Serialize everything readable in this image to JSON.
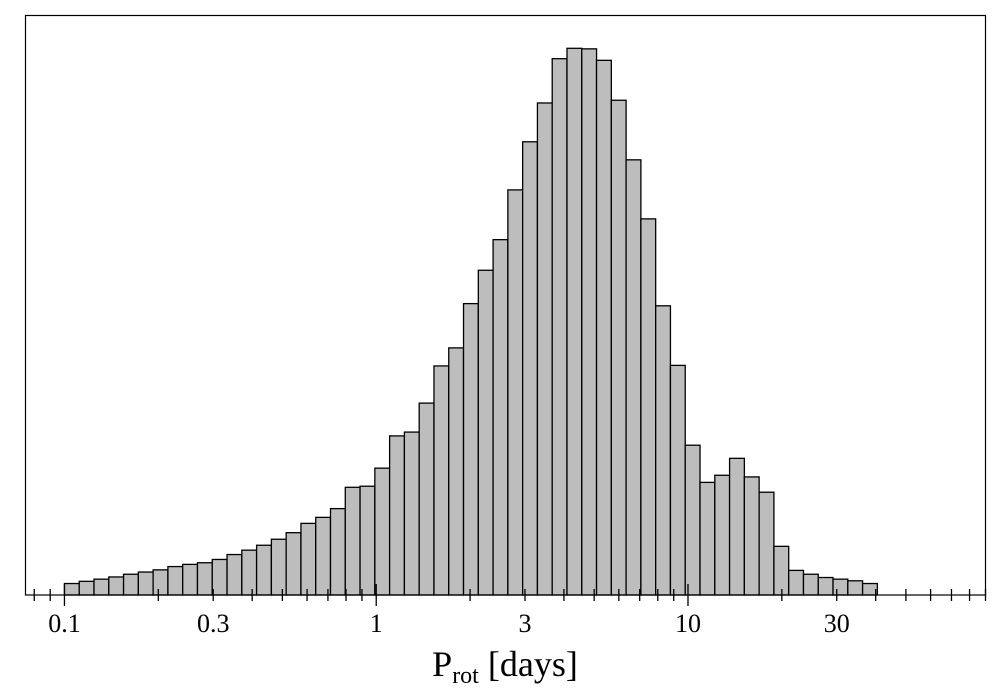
{
  "chart_data": {
    "type": "bar",
    "xscale": "log",
    "xlim": [
      0.075,
      90
    ],
    "ylim": [
      0,
      1.06
    ],
    "xlabel": {
      "main": "P",
      "sub": "rot",
      "suffix": " [days]"
    },
    "ylabel": "",
    "yticks": "none",
    "bar_color": "#bdbdbd",
    "edge_color": "#000000",
    "bins": {
      "x_start": 0.1,
      "x_end": 40.5,
      "relative_heights": [
        0.021,
        0.025,
        0.029,
        0.033,
        0.038,
        0.042,
        0.046,
        0.052,
        0.056,
        0.059,
        0.065,
        0.074,
        0.082,
        0.091,
        0.102,
        0.114,
        0.131,
        0.142,
        0.158,
        0.197,
        0.199,
        0.232,
        0.291,
        0.298,
        0.351,
        0.419,
        0.452,
        0.533,
        0.594,
        0.65,
        0.741,
        0.829,
        0.9,
        0.981,
        1.0,
        0.999,
        0.978,
        0.905,
        0.796,
        0.688,
        0.529,
        0.42,
        0.274,
        0.206,
        0.219,
        0.25,
        0.216,
        0.188,
        0.089,
        0.045,
        0.038,
        0.032,
        0.029,
        0.026,
        0.021
      ]
    },
    "xtick_labels": [
      {
        "value": 0.1,
        "label": "0.1"
      },
      {
        "value": 0.3,
        "label": "0.3"
      },
      {
        "value": 1,
        "label": "1"
      },
      {
        "value": 3,
        "label": "3"
      },
      {
        "value": 10,
        "label": "10"
      },
      {
        "value": 30,
        "label": "30"
      }
    ],
    "major_ticks": [
      0.1,
      1,
      10
    ],
    "minor_ticks": [
      0.08,
      0.09,
      0.2,
      0.3,
      0.4,
      0.5,
      0.6,
      0.7,
      0.8,
      0.9,
      2,
      3,
      4,
      5,
      6,
      7,
      8,
      9,
      20,
      30,
      40,
      50,
      60,
      70,
      80,
      90
    ]
  }
}
